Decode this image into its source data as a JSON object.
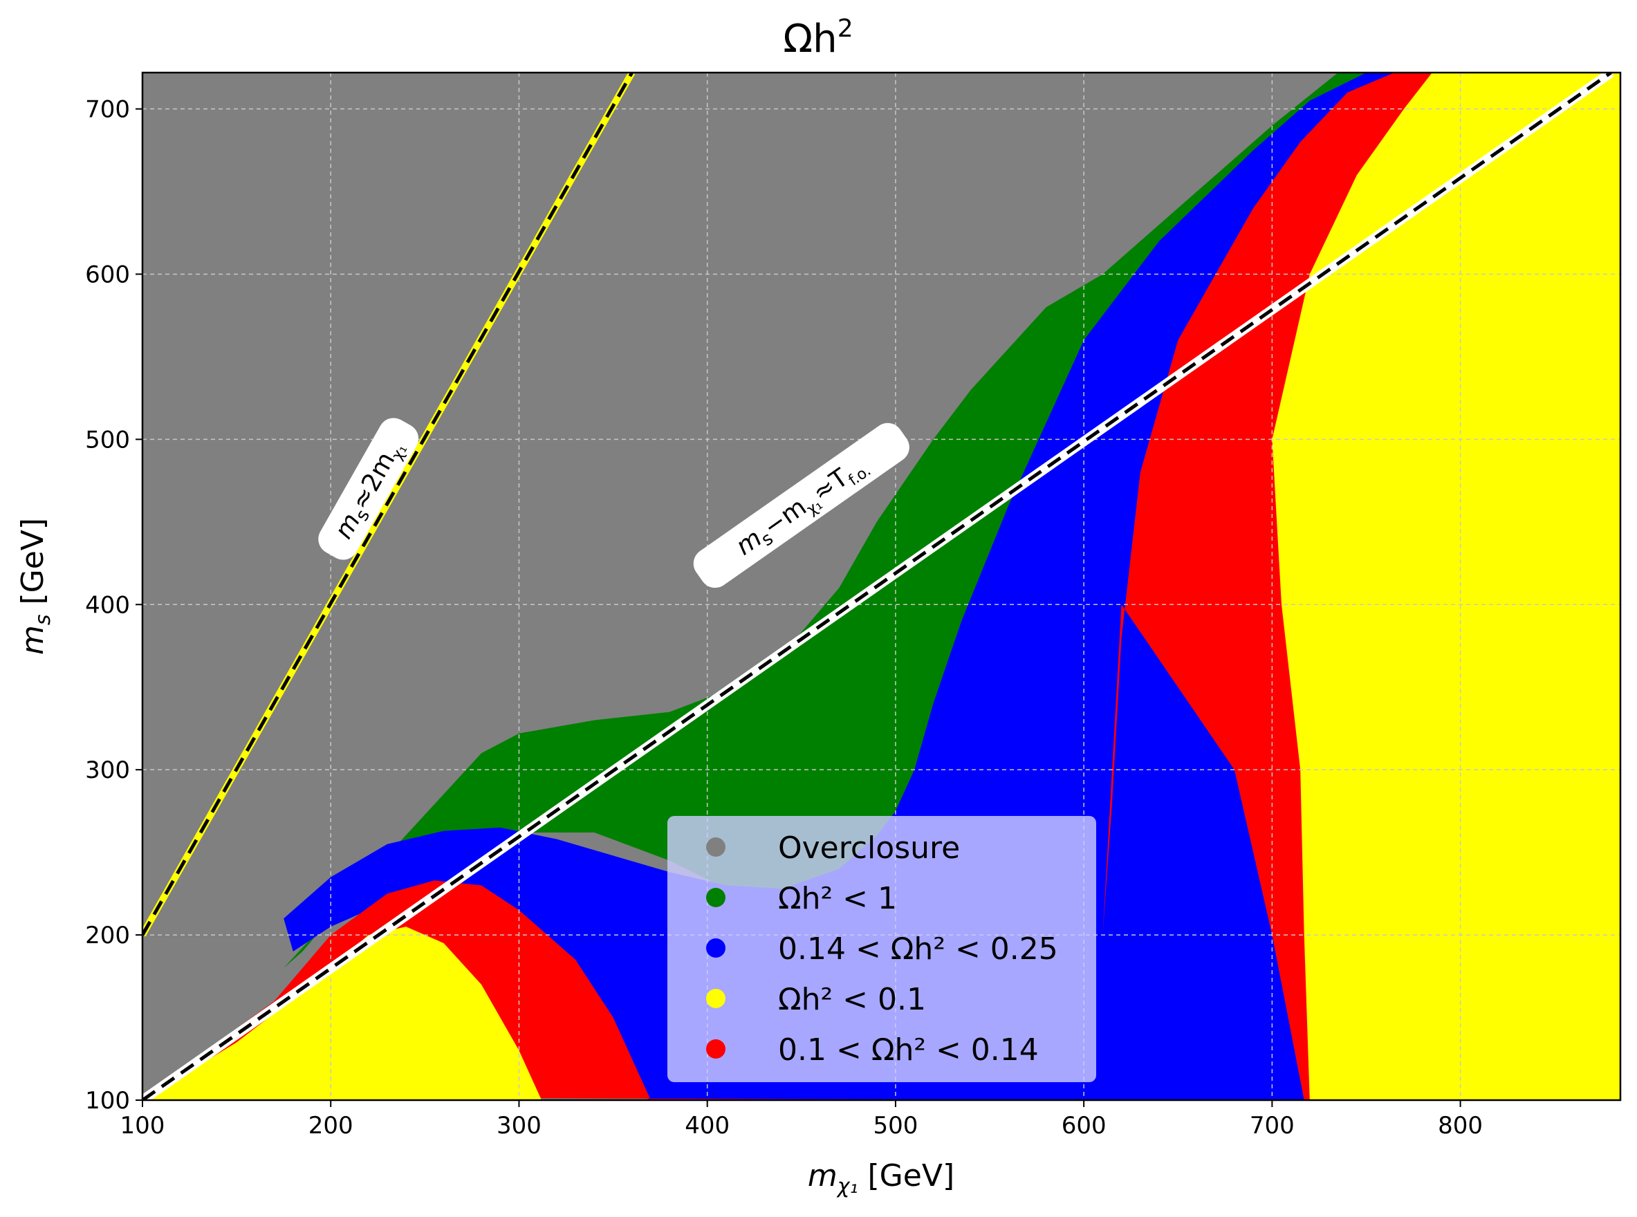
{
  "chart_data": {
    "type": "scatter",
    "title": "Ωh²",
    "title_parts": {
      "omega": "Ωh",
      "sup": "2"
    },
    "xlabel": "m_χ1 [GeV]",
    "ylabel": "m_s [GeV]",
    "x_label_parts": {
      "m": "m",
      "sub": "χ₁",
      "unit": " [GeV]"
    },
    "y_label_parts": {
      "m": "m",
      "sub": "s",
      "unit": " [GeV]"
    },
    "xlim": [
      100,
      885
    ],
    "ylim": [
      100,
      722
    ],
    "x_ticks": [
      100,
      200,
      300,
      400,
      500,
      600,
      700,
      800
    ],
    "y_ticks": [
      100,
      200,
      300,
      400,
      500,
      600,
      700
    ],
    "grid": true,
    "colors": {
      "overclosure": "#808080",
      "lt1": "#008000",
      "blue_band": "#0000ff",
      "lt01": "#ffff00",
      "red_band": "#ff0000",
      "legend_bg": "#ccccff"
    },
    "legend": {
      "placement": "lower-center",
      "items": [
        {
          "key": "overclosure",
          "label": "Overclosure"
        },
        {
          "key": "lt1",
          "label": "Ωh² < 1"
        },
        {
          "key": "blue_band",
          "label": "0.14 < Ωh² < 0.25"
        },
        {
          "key": "lt01",
          "label": "Ωh² < 0.1"
        },
        {
          "key": "red_band",
          "label": "0.1 < Ωh² < 0.14"
        }
      ]
    },
    "series": [
      {
        "name": "Overclosure",
        "color_key": "overclosure",
        "region": "above threshold line and elsewhere not covered"
      },
      {
        "name": "Omega h2 < 1 (boundary)",
        "color_key": "lt1",
        "x": [
          280,
          300,
          340,
          380,
          410,
          440,
          470,
          490,
          505,
          520,
          540,
          580,
          610,
          650,
          700,
          735,
          885,
          885,
          700,
          650,
          620,
          580,
          540,
          520,
          505,
          490,
          470,
          440,
          410,
          380,
          340,
          300,
          260,
          240,
          220,
          210,
          200,
          185,
          175
        ],
        "y": [
          310,
          322,
          330,
          335,
          348,
          370,
          410,
          450,
          475,
          500,
          530,
          580,
          600,
          640,
          690,
          722,
          722,
          100,
          100,
          100,
          200,
          250,
          300,
          250,
          240,
          235,
          230,
          228,
          228,
          245,
          262,
          262,
          255,
          250,
          235,
          225,
          210,
          190,
          180
        ]
      },
      {
        "name": "0.14 < Omega h2 < 0.25 (boundary)",
        "color_key": "blue_band",
        "x": [
          175,
          200,
          230,
          260,
          290,
          320,
          350,
          380,
          410,
          440,
          470,
          490,
          500,
          510,
          520,
          535,
          560,
          600,
          640,
          690,
          720,
          750,
          770,
          885,
          885,
          370,
          330,
          300,
          270,
          255,
          230,
          200,
          180
        ],
        "y": [
          210,
          235,
          255,
          263,
          265,
          258,
          248,
          238,
          230,
          228,
          240,
          260,
          275,
          300,
          340,
          390,
          460,
          560,
          620,
          675,
          705,
          722,
          722,
          722,
          100,
          100,
          120,
          170,
          215,
          225,
          220,
          205,
          190
        ]
      },
      {
        "name": "0.1 < Omega h2 < 0.14 (boundary)",
        "color_key": "red_band",
        "x": [
          100,
          170,
          200,
          230,
          255,
          280,
          300,
          330,
          350,
          370,
          605,
          610,
          615,
          620,
          630,
          650,
          670,
          690,
          715,
          740,
          765,
          790,
          885,
          885,
          717,
          700,
          680,
          620,
          605
        ],
        "y": [
          102,
          160,
          200,
          225,
          233,
          230,
          215,
          185,
          150,
          100,
          100,
          200,
          280,
          380,
          480,
          560,
          600,
          640,
          680,
          710,
          722,
          722,
          722,
          100,
          100,
          200,
          300,
          400,
          100
        ]
      },
      {
        "name": "Omega h2 < 0.1 (boundary)",
        "color_key": "lt01",
        "x": [
          100,
          150,
          190,
          220,
          240,
          260,
          280,
          300,
          312,
          720,
          717,
          715,
          705,
          700,
          720,
          745,
          770,
          785,
          885,
          885
        ],
        "y": [
          100,
          135,
          170,
          200,
          205,
          195,
          170,
          130,
          100,
          100,
          200,
          300,
          400,
          500,
          600,
          660,
          700,
          722,
          722,
          100
        ]
      }
    ],
    "threshold_line": {
      "x": [
        100,
        880
      ],
      "y": [
        100,
        722
      ]
    },
    "resonance_line": {
      "x": [
        100,
        360
      ],
      "y": [
        200,
        722
      ]
    },
    "annotations": [
      {
        "id": "resonance",
        "text_main": "m",
        "sub1": "s",
        "mid": "≈2m",
        "sub2": "χ₁",
        "x": 220,
        "y": 470
      },
      {
        "id": "threshold",
        "text_main": "m",
        "sub1": "s",
        "mid": "−m",
        "sub2": "χ₁",
        "tail": "≈T",
        "sub3": "f.o.",
        "x": 450,
        "y": 460
      }
    ]
  }
}
